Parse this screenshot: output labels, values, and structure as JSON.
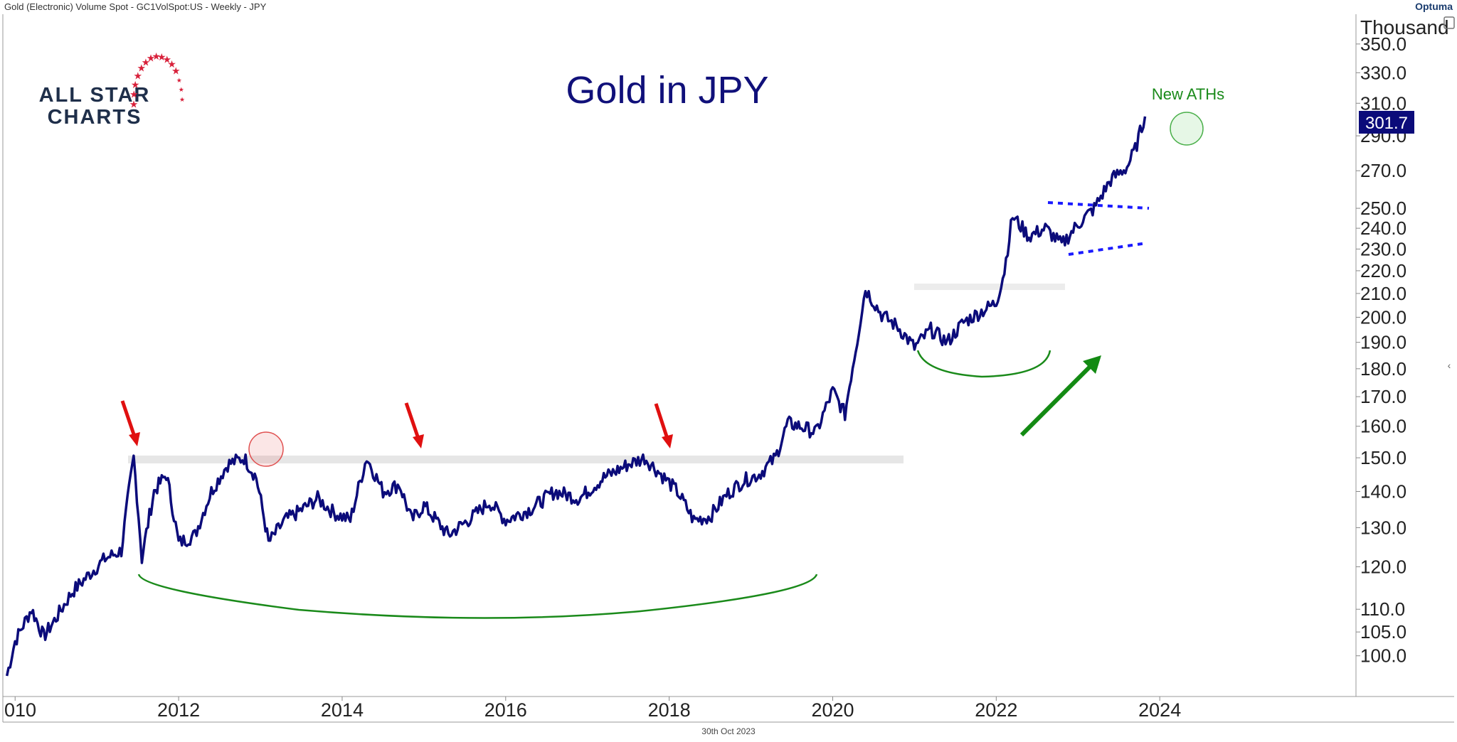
{
  "header": {
    "instrument": "Gold (Electronic) Volume Spot - GC1VolSpot:US - Weekly - JPY",
    "brand": "Optuma"
  },
  "footer": {
    "date": "30th Oct 2023"
  },
  "logo": {
    "line1": "ALL STAR",
    "line2": "CHARTS"
  },
  "colors": {
    "price": "#0b0b7a",
    "arrow_red": "#e01010",
    "arc_green": "#1a8a1a",
    "dotted_blue": "#1a1aff",
    "resistance": "#e6e6e6"
  },
  "chart_data": {
    "type": "line",
    "title": "Gold in JPY",
    "y_unit": "Thousand",
    "scale": "log",
    "ylim": [
      92,
      372
    ],
    "xlim": [
      2009.85,
      2026.4
    ],
    "y_ticks": [
      "350.0",
      "330.0",
      "310.0",
      "290.0",
      "270.0",
      "250.0",
      "240.0",
      "230.0",
      "220.0",
      "210.0",
      "200.0",
      "190.0",
      "180.0",
      "170.0",
      "160.0",
      "150.0",
      "140.0",
      "130.0",
      "120.0",
      "110.0",
      "105.0",
      "100.0"
    ],
    "x_ticks": [
      "010",
      "2012",
      "2014",
      "2016",
      "2018",
      "2020",
      "2022",
      "2024"
    ],
    "last_value": "301.7",
    "series": [
      {
        "x": [
          2009.9,
          2010.0,
          2010.2,
          2010.35,
          2010.5,
          2010.7,
          2010.9,
          2011.1,
          2011.3,
          2011.45,
          2011.55,
          2011.7,
          2011.85,
          2012.0,
          2012.2,
          2012.4,
          2012.6,
          2012.8,
          2012.95,
          2013.1,
          2013.3,
          2013.45,
          2013.7,
          2013.9,
          2014.1,
          2014.3,
          2014.5,
          2014.7,
          2014.85,
          2015.0,
          2015.3,
          2015.6,
          2015.8,
          2016.0,
          2016.3,
          2016.6,
          2016.9,
          2017.2,
          2017.5,
          2017.7,
          2017.9,
          2018.1,
          2018.3,
          2018.5,
          2018.7,
          2018.9,
          2019.1,
          2019.3,
          2019.45,
          2019.6,
          2019.8,
          2020.0,
          2020.15,
          2020.3,
          2020.4,
          2020.6,
          2020.8,
          2021.0,
          2021.2,
          2021.4,
          2021.6,
          2021.8,
          2022.0,
          2022.1,
          2022.2,
          2022.4,
          2022.6,
          2022.8,
          2023.0,
          2023.2,
          2023.4,
          2023.6,
          2023.7,
          2023.82
        ],
        "values": [
          96,
          103,
          110,
          104,
          108,
          114,
          118,
          122,
          124,
          150,
          122,
          140,
          145,
          126,
          128,
          140,
          148,
          150,
          144,
          126,
          132,
          134,
          138,
          134,
          132,
          150,
          140,
          142,
          132,
          136,
          128,
          133,
          137,
          132,
          135,
          140,
          138,
          144,
          148,
          150,
          145,
          140,
          132,
          133,
          139,
          143,
          145,
          150,
          161,
          160,
          158,
          172,
          164,
          191,
          212,
          201,
          196,
          188,
          195,
          190,
          198,
          202,
          206,
          220,
          246,
          236,
          240,
          232,
          242,
          250,
          265,
          272,
          282,
          301.7
        ]
      }
    ],
    "annotations": [
      {
        "type": "text",
        "text": "New ATHs"
      }
    ]
  }
}
